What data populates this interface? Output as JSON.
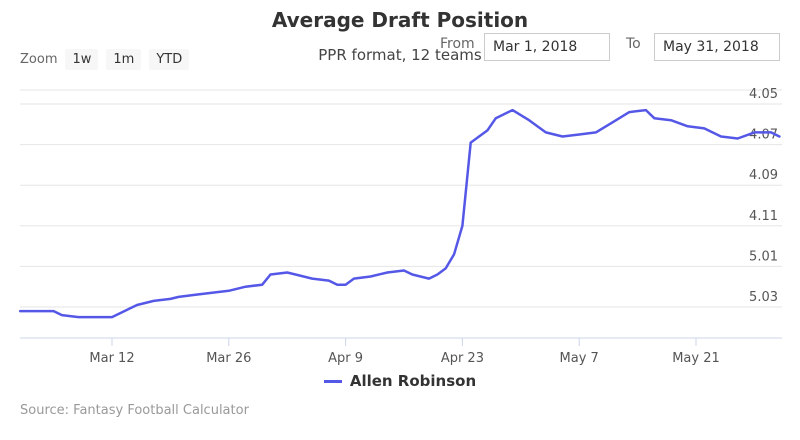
{
  "chart_data": {
    "type": "line",
    "title": "Average Draft Position",
    "subtitle": "PPR format, 12 teams",
    "xlabel": "",
    "ylabel": "",
    "x_ticks": [
      "Mar 12",
      "Mar 26",
      "Apr 9",
      "Apr 23",
      "May 7",
      "May 21"
    ],
    "y_ticks": [
      "4.05",
      "4.07",
      "4.09",
      "4.11",
      "5.01",
      "5.03"
    ],
    "y_axis_note": "ADP expressed as round.pick (12-team league); lower pick plotted higher",
    "grid": true,
    "legend_position": "bottom-center",
    "x_range": [
      "2018-03-01",
      "2018-05-31"
    ],
    "series": [
      {
        "name": "Allen Robinson",
        "color": "#5558e6",
        "x": [
          "2018-03-01",
          "2018-03-03",
          "2018-03-05",
          "2018-03-06",
          "2018-03-08",
          "2018-03-10",
          "2018-03-12",
          "2018-03-14",
          "2018-03-15",
          "2018-03-17",
          "2018-03-19",
          "2018-03-20",
          "2018-03-22",
          "2018-03-24",
          "2018-03-26",
          "2018-03-28",
          "2018-03-30",
          "2018-03-31",
          "2018-04-02",
          "2018-04-03",
          "2018-04-05",
          "2018-04-07",
          "2018-04-08",
          "2018-04-09",
          "2018-04-10",
          "2018-04-12",
          "2018-04-14",
          "2018-04-16",
          "2018-04-17",
          "2018-04-19",
          "2018-04-20",
          "2018-04-21",
          "2018-04-22",
          "2018-04-23",
          "2018-04-24",
          "2018-04-26",
          "2018-04-27",
          "2018-04-29",
          "2018-05-01",
          "2018-05-03",
          "2018-05-05",
          "2018-05-07",
          "2018-05-09",
          "2018-05-11",
          "2018-05-13",
          "2018-05-15",
          "2018-05-16",
          "2018-05-18",
          "2018-05-20",
          "2018-05-22",
          "2018-05-24",
          "2018-05-26",
          "2018-05-28",
          "2018-05-30",
          "2018-05-31"
        ],
        "y": [
          5.032,
          5.032,
          5.032,
          5.034,
          5.035,
          5.035,
          5.035,
          5.031,
          5.029,
          5.027,
          5.026,
          5.025,
          5.024,
          5.023,
          5.022,
          5.02,
          5.019,
          5.014,
          5.013,
          5.014,
          5.016,
          5.017,
          5.019,
          5.019,
          5.016,
          5.015,
          5.013,
          5.012,
          5.014,
          5.016,
          5.014,
          5.011,
          5.004,
          4.11,
          4.069,
          4.063,
          4.057,
          4.053,
          4.058,
          4.064,
          4.066,
          4.065,
          4.064,
          4.059,
          4.054,
          4.053,
          4.057,
          4.058,
          4.061,
          4.062,
          4.066,
          4.067,
          4.064,
          4.064,
          4.066
        ]
      }
    ]
  },
  "toolbar": {
    "zoom_label": "Zoom",
    "zoom_buttons": [
      "1w",
      "1m",
      "YTD"
    ],
    "from_label": "From",
    "from_value": "Mar 1, 2018",
    "to_label": "To",
    "to_value": "May 31, 2018"
  },
  "source": "Source: Fantasy Football Calculator"
}
